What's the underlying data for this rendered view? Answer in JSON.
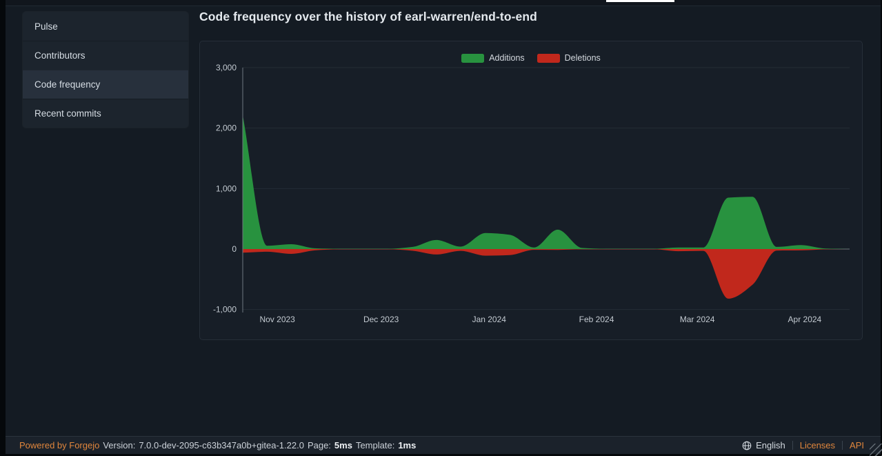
{
  "sidebar": {
    "items": [
      {
        "label": "Pulse",
        "active": false
      },
      {
        "label": "Contributors",
        "active": false
      },
      {
        "label": "Code frequency",
        "active": true
      },
      {
        "label": "Recent commits",
        "active": false
      }
    ]
  },
  "main": {
    "title": "Code frequency over the history of earl-warren/end-to-end"
  },
  "chart_data": {
    "type": "area",
    "title": "Code frequency over the history of earl-warren/end-to-end",
    "legend": {
      "position": "top-center",
      "entries": [
        "Additions",
        "Deletions"
      ]
    },
    "grid": {
      "horizontal": true,
      "vertical": false
    },
    "x_axis": {
      "unit": "weekly points, pos = fraction of plot width",
      "ticks": [
        {
          "label": "Nov 2023",
          "pos": 0.057
        },
        {
          "label": "Dec 2023",
          "pos": 0.228
        },
        {
          "label": "Jan 2024",
          "pos": 0.406
        },
        {
          "label": "Feb 2024",
          "pos": 0.583
        },
        {
          "label": "Mar 2024",
          "pos": 0.749
        },
        {
          "label": "Apr 2024",
          "pos": 0.926
        }
      ]
    },
    "y_axis": {
      "max": 3000,
      "min_visible": -1050,
      "ticks": [
        {
          "label": "3,000",
          "value": 3000
        },
        {
          "label": "2,000",
          "value": 2000
        },
        {
          "label": "1,000",
          "value": 1000
        },
        {
          "label": "0",
          "value": 0
        },
        {
          "label": "-1,000",
          "value": -1000
        }
      ]
    },
    "series": [
      {
        "name": "Additions",
        "color": "#28923f",
        "points": [
          [
            0,
            2210
          ],
          [
            0.04,
            55
          ],
          [
            0.08,
            80
          ],
          [
            0.119,
            12
          ],
          [
            0.159,
            4
          ],
          [
            0.199,
            4
          ],
          [
            0.239,
            4
          ],
          [
            0.28,
            35
          ],
          [
            0.319,
            150
          ],
          [
            0.359,
            40
          ],
          [
            0.4,
            265
          ],
          [
            0.44,
            235
          ],
          [
            0.48,
            25
          ],
          [
            0.519,
            320
          ],
          [
            0.559,
            18
          ],
          [
            0.599,
            4
          ],
          [
            0.639,
            4
          ],
          [
            0.678,
            4
          ],
          [
            0.718,
            25
          ],
          [
            0.759,
            25
          ],
          [
            0.8,
            850
          ],
          [
            0.84,
            865
          ],
          [
            0.88,
            35
          ],
          [
            0.92,
            65
          ],
          [
            0.96,
            8
          ],
          [
            1,
            0
          ]
        ]
      },
      {
        "name": "Deletions",
        "color": "#c1281c",
        "points": [
          [
            0,
            -60
          ],
          [
            0.04,
            -45
          ],
          [
            0.08,
            -80
          ],
          [
            0.119,
            -22
          ],
          [
            0.159,
            -4
          ],
          [
            0.199,
            -4
          ],
          [
            0.239,
            -4
          ],
          [
            0.28,
            -28
          ],
          [
            0.319,
            -90
          ],
          [
            0.359,
            -30
          ],
          [
            0.4,
            -110
          ],
          [
            0.44,
            -100
          ],
          [
            0.48,
            -12
          ],
          [
            0.519,
            -14
          ],
          [
            0.559,
            -4
          ],
          [
            0.599,
            -4
          ],
          [
            0.639,
            -4
          ],
          [
            0.678,
            -4
          ],
          [
            0.718,
            -35
          ],
          [
            0.759,
            -30
          ],
          [
            0.8,
            -820
          ],
          [
            0.84,
            -590
          ],
          [
            0.88,
            -25
          ],
          [
            0.92,
            -22
          ],
          [
            0.96,
            -5
          ],
          [
            1,
            0
          ]
        ]
      }
    ]
  },
  "footer": {
    "powered_by": "Powered by Forgejo",
    "version_label": "Version:",
    "version": "7.0.0-dev-2095-c63b347a0b+gitea-1.22.0",
    "page_label": "Page:",
    "page_time": "5ms",
    "template_label": "Template:",
    "template_time": "1ms",
    "language": "English",
    "licenses": "Licenses",
    "api": "API"
  },
  "colors": {
    "accent_orange": "#e0863c",
    "additions_green": "#28923f",
    "deletions_red": "#c1281c",
    "active_tab_underline": "#ffffff"
  }
}
